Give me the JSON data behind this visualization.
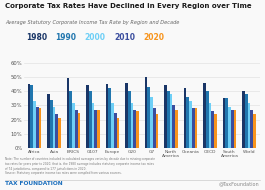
{
  "title": "Corporate Tax Rates Have Declined in Every Region over Time",
  "subtitle": "Average Statutory Corporate Income Tax Rate by Region and Decade",
  "categories": [
    "Africa",
    "Asia",
    "BRICS",
    "G107",
    "Europe",
    "G20",
    "G7",
    "North\nAmerica",
    "Oceania",
    "OECD",
    "South\nAmerica",
    "World"
  ],
  "years": [
    "1980",
    "1990",
    "2000",
    "2010",
    "2020"
  ],
  "year_colors": [
    "#1a3667",
    "#2176ae",
    "#6ecff6",
    "#1a3667",
    "#f7941d"
  ],
  "year_colors_legend": [
    "#1a3667",
    "#2176ae",
    "#6ecff6",
    "#3a3a8c",
    "#f7941d"
  ],
  "data": {
    "1980": [
      45,
      38,
      49,
      44,
      45,
      46,
      50,
      44,
      42,
      46,
      35,
      40
    ],
    "1990": [
      44,
      34,
      40,
      40,
      42,
      40,
      43,
      40,
      36,
      40,
      35,
      38
    ],
    "2000": [
      33,
      29,
      32,
      32,
      32,
      32,
      36,
      38,
      33,
      32,
      29,
      32
    ],
    "2010": [
      29,
      24,
      27,
      27,
      25,
      27,
      28,
      30,
      28,
      26,
      27,
      27
    ],
    "2020": [
      28,
      21,
      25,
      27,
      21,
      26,
      24,
      27,
      28,
      24,
      27,
      24
    ]
  },
  "bar_colors": [
    "#1a3667",
    "#2176ae",
    "#6ecff6",
    "#3a4d9e",
    "#f7941d"
  ],
  "legend_colors": [
    "#1a3667",
    "#2176ae",
    "#6ecff6",
    "#3a4d9e",
    "#f7941d"
  ],
  "ylim": [
    0,
    60
  ],
  "yticks": [
    0,
    10,
    20,
    30,
    40,
    50,
    60
  ],
  "footnote": "Note: The number of countries included in calculated averages varies by decade due to missing corporate\ntax rates for years prior to 2020; that is, the 1980 average includes statutory corporate income tax rates\nof 74 jurisdictions, compared to 177 jurisdictions in 2020.\nSource: Statutory corporate income tax rates were compiled from various sources.",
  "footer_left": "TAX FOUNDATION",
  "footer_right": "@TaxFoundation",
  "bg_color": "#f9f9f9",
  "grid_color": "#dddddd",
  "title_color": "#1a1a1a",
  "subtitle_color": "#666666"
}
